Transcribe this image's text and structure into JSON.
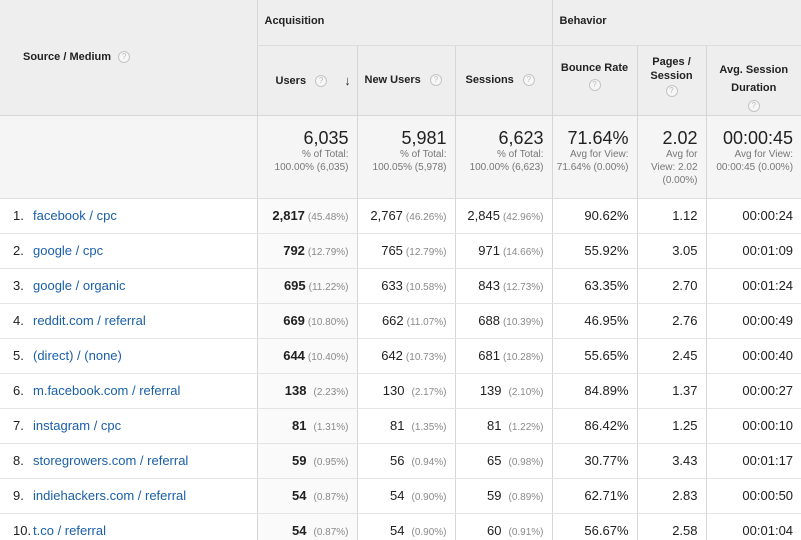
{
  "header": {
    "source_medium": "Source / Medium",
    "acquisition": "Acquisition",
    "behavior": "Behavior",
    "users": "Users",
    "new_users": "New Users",
    "sessions": "Sessions",
    "bounce_rate": "Bounce Rate",
    "pages_session": "Pages / Session",
    "avg_session_duration": "Avg. Session Duration",
    "help_glyph": "?",
    "sort_glyph": "↓"
  },
  "totals": {
    "users": {
      "value": "6,035",
      "sub": "% of Total: 100.00% (6,035)"
    },
    "new_users": {
      "value": "5,981",
      "sub": "% of Total: 100.05% (5,978)"
    },
    "sessions": {
      "value": "6,623",
      "sub": "% of Total: 100.00% (6,623)"
    },
    "bounce_rate": {
      "value": "71.64%",
      "sub": "Avg for View: 71.64% (0.00%)"
    },
    "pages_session": {
      "value": "2.02",
      "sub": "Avg for View: 2.02 (0.00%)"
    },
    "avg_session_duration": {
      "value": "00:00:45",
      "sub": "Avg for View: 00:00:45 (0.00%)"
    }
  },
  "rows": [
    {
      "idx": "1.",
      "source": "facebook / cpc",
      "users": "2,817",
      "users_pct": "(45.48%)",
      "new_users": "2,767",
      "new_users_pct": "(46.26%)",
      "sessions": "2,845",
      "sessions_pct": "(42.96%)",
      "bounce": "90.62%",
      "pages": "1.12",
      "duration": "00:00:24"
    },
    {
      "idx": "2.",
      "source": "google / cpc",
      "users": "792",
      "users_pct": "(12.79%)",
      "new_users": "765",
      "new_users_pct": "(12.79%)",
      "sessions": "971",
      "sessions_pct": "(14.66%)",
      "bounce": "55.92%",
      "pages": "3.05",
      "duration": "00:01:09"
    },
    {
      "idx": "3.",
      "source": "google / organic",
      "users": "695",
      "users_pct": "(11.22%)",
      "new_users": "633",
      "new_users_pct": "(10.58%)",
      "sessions": "843",
      "sessions_pct": "(12.73%)",
      "bounce": "63.35%",
      "pages": "2.70",
      "duration": "00:01:24"
    },
    {
      "idx": "4.",
      "source": "reddit.com / referral",
      "users": "669",
      "users_pct": "(10.80%)",
      "new_users": "662",
      "new_users_pct": "(11.07%)",
      "sessions": "688",
      "sessions_pct": "(10.39%)",
      "bounce": "46.95%",
      "pages": "2.76",
      "duration": "00:00:49"
    },
    {
      "idx": "5.",
      "source": "(direct) / (none)",
      "users": "644",
      "users_pct": "(10.40%)",
      "new_users": "642",
      "new_users_pct": "(10.73%)",
      "sessions": "681",
      "sessions_pct": "(10.28%)",
      "bounce": "55.65%",
      "pages": "2.45",
      "duration": "00:00:40"
    },
    {
      "idx": "6.",
      "source": "m.facebook.com / referral",
      "users": "138",
      "users_pct": "(2.23%)",
      "new_users": "130",
      "new_users_pct": "(2.17%)",
      "sessions": "139",
      "sessions_pct": "(2.10%)",
      "bounce": "84.89%",
      "pages": "1.37",
      "duration": "00:00:27"
    },
    {
      "idx": "7.",
      "source": "instagram / cpc",
      "users": "81",
      "users_pct": "(1.31%)",
      "new_users": "81",
      "new_users_pct": "(1.35%)",
      "sessions": "81",
      "sessions_pct": "(1.22%)",
      "bounce": "86.42%",
      "pages": "1.25",
      "duration": "00:00:10"
    },
    {
      "idx": "8.",
      "source": "storegrowers.com / referral",
      "users": "59",
      "users_pct": "(0.95%)",
      "new_users": "56",
      "new_users_pct": "(0.94%)",
      "sessions": "65",
      "sessions_pct": "(0.98%)",
      "bounce": "30.77%",
      "pages": "3.43",
      "duration": "00:01:17"
    },
    {
      "idx": "9.",
      "source": "indiehackers.com / referral",
      "users": "54",
      "users_pct": "(0.87%)",
      "new_users": "54",
      "new_users_pct": "(0.90%)",
      "sessions": "59",
      "sessions_pct": "(0.89%)",
      "bounce": "62.71%",
      "pages": "2.83",
      "duration": "00:00:50"
    },
    {
      "idx": "10.",
      "source": "t.co / referral",
      "users": "54",
      "users_pct": "(0.87%)",
      "new_users": "54",
      "new_users_pct": "(0.90%)",
      "sessions": "60",
      "sessions_pct": "(0.91%)",
      "bounce": "56.67%",
      "pages": "2.58",
      "duration": "00:01:04"
    }
  ],
  "colors": {
    "link": "#1a5fa8",
    "header_bg": "#eeeeee",
    "totals_bg": "#f5f5f5"
  }
}
